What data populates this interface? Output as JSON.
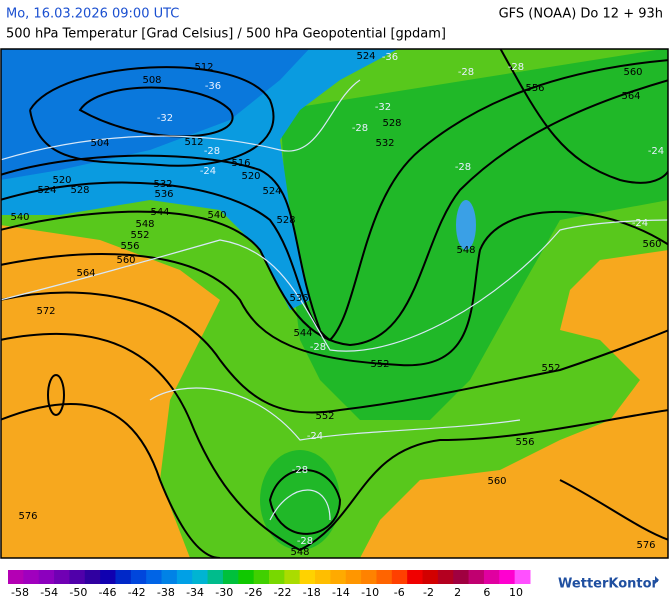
{
  "header": {
    "datetime": "Mo, 16.03.2026 09:00 UTC",
    "model": "GFS (NOAA) Do 12 + 93h",
    "subtitle": "500 hPa Temperatur [Grad Celsius] / 500 hPa Geopotential [gpdam]"
  },
  "map": {
    "contour_labels": [
      "524",
      "508",
      "512",
      "504",
      "512",
      "516",
      "520",
      "520",
      "524",
      "528",
      "532",
      "536",
      "524",
      "540",
      "544",
      "540",
      "528",
      "548",
      "552",
      "556",
      "560",
      "564",
      "572",
      "536",
      "544",
      "552",
      "552",
      "556",
      "560",
      "548",
      "576",
      "576",
      "552",
      "548",
      "560",
      "564",
      "560",
      "556",
      "528",
      "532"
    ],
    "temperature_labels": [
      "-36",
      "-36",
      "-32",
      "-28",
      "-24",
      "-28",
      "-28",
      "-24",
      "-28",
      "-28",
      "-28",
      "-32",
      "-28",
      "-28",
      "-24",
      "-24"
    ]
  },
  "legend": {
    "labels": [
      -58,
      -54,
      -50,
      -46,
      -42,
      -38,
      -34,
      -30,
      -26,
      -22,
      -18,
      -14,
      -10,
      -6,
      -2,
      2,
      6,
      10
    ],
    "colors": [
      "#b400b4",
      "#a000be",
      "#8c00be",
      "#7000b4",
      "#5000aa",
      "#3000a0",
      "#1000b0",
      "#0028c8",
      "#0046dc",
      "#0064e6",
      "#0082e6",
      "#00a0e6",
      "#00b4d2",
      "#00bc8c",
      "#00c03c",
      "#10c800",
      "#40d000",
      "#78d800",
      "#aadc00",
      "#ffd200",
      "#ffbe00",
      "#ffaa00",
      "#ff9600",
      "#ff8200",
      "#ff6400",
      "#ff4000",
      "#f00000",
      "#d20000",
      "#b40020",
      "#a00040",
      "#c00070",
      "#e000a0",
      "#ff00d0",
      "#ff50ff"
    ]
  },
  "logo": "WetterKontor"
}
